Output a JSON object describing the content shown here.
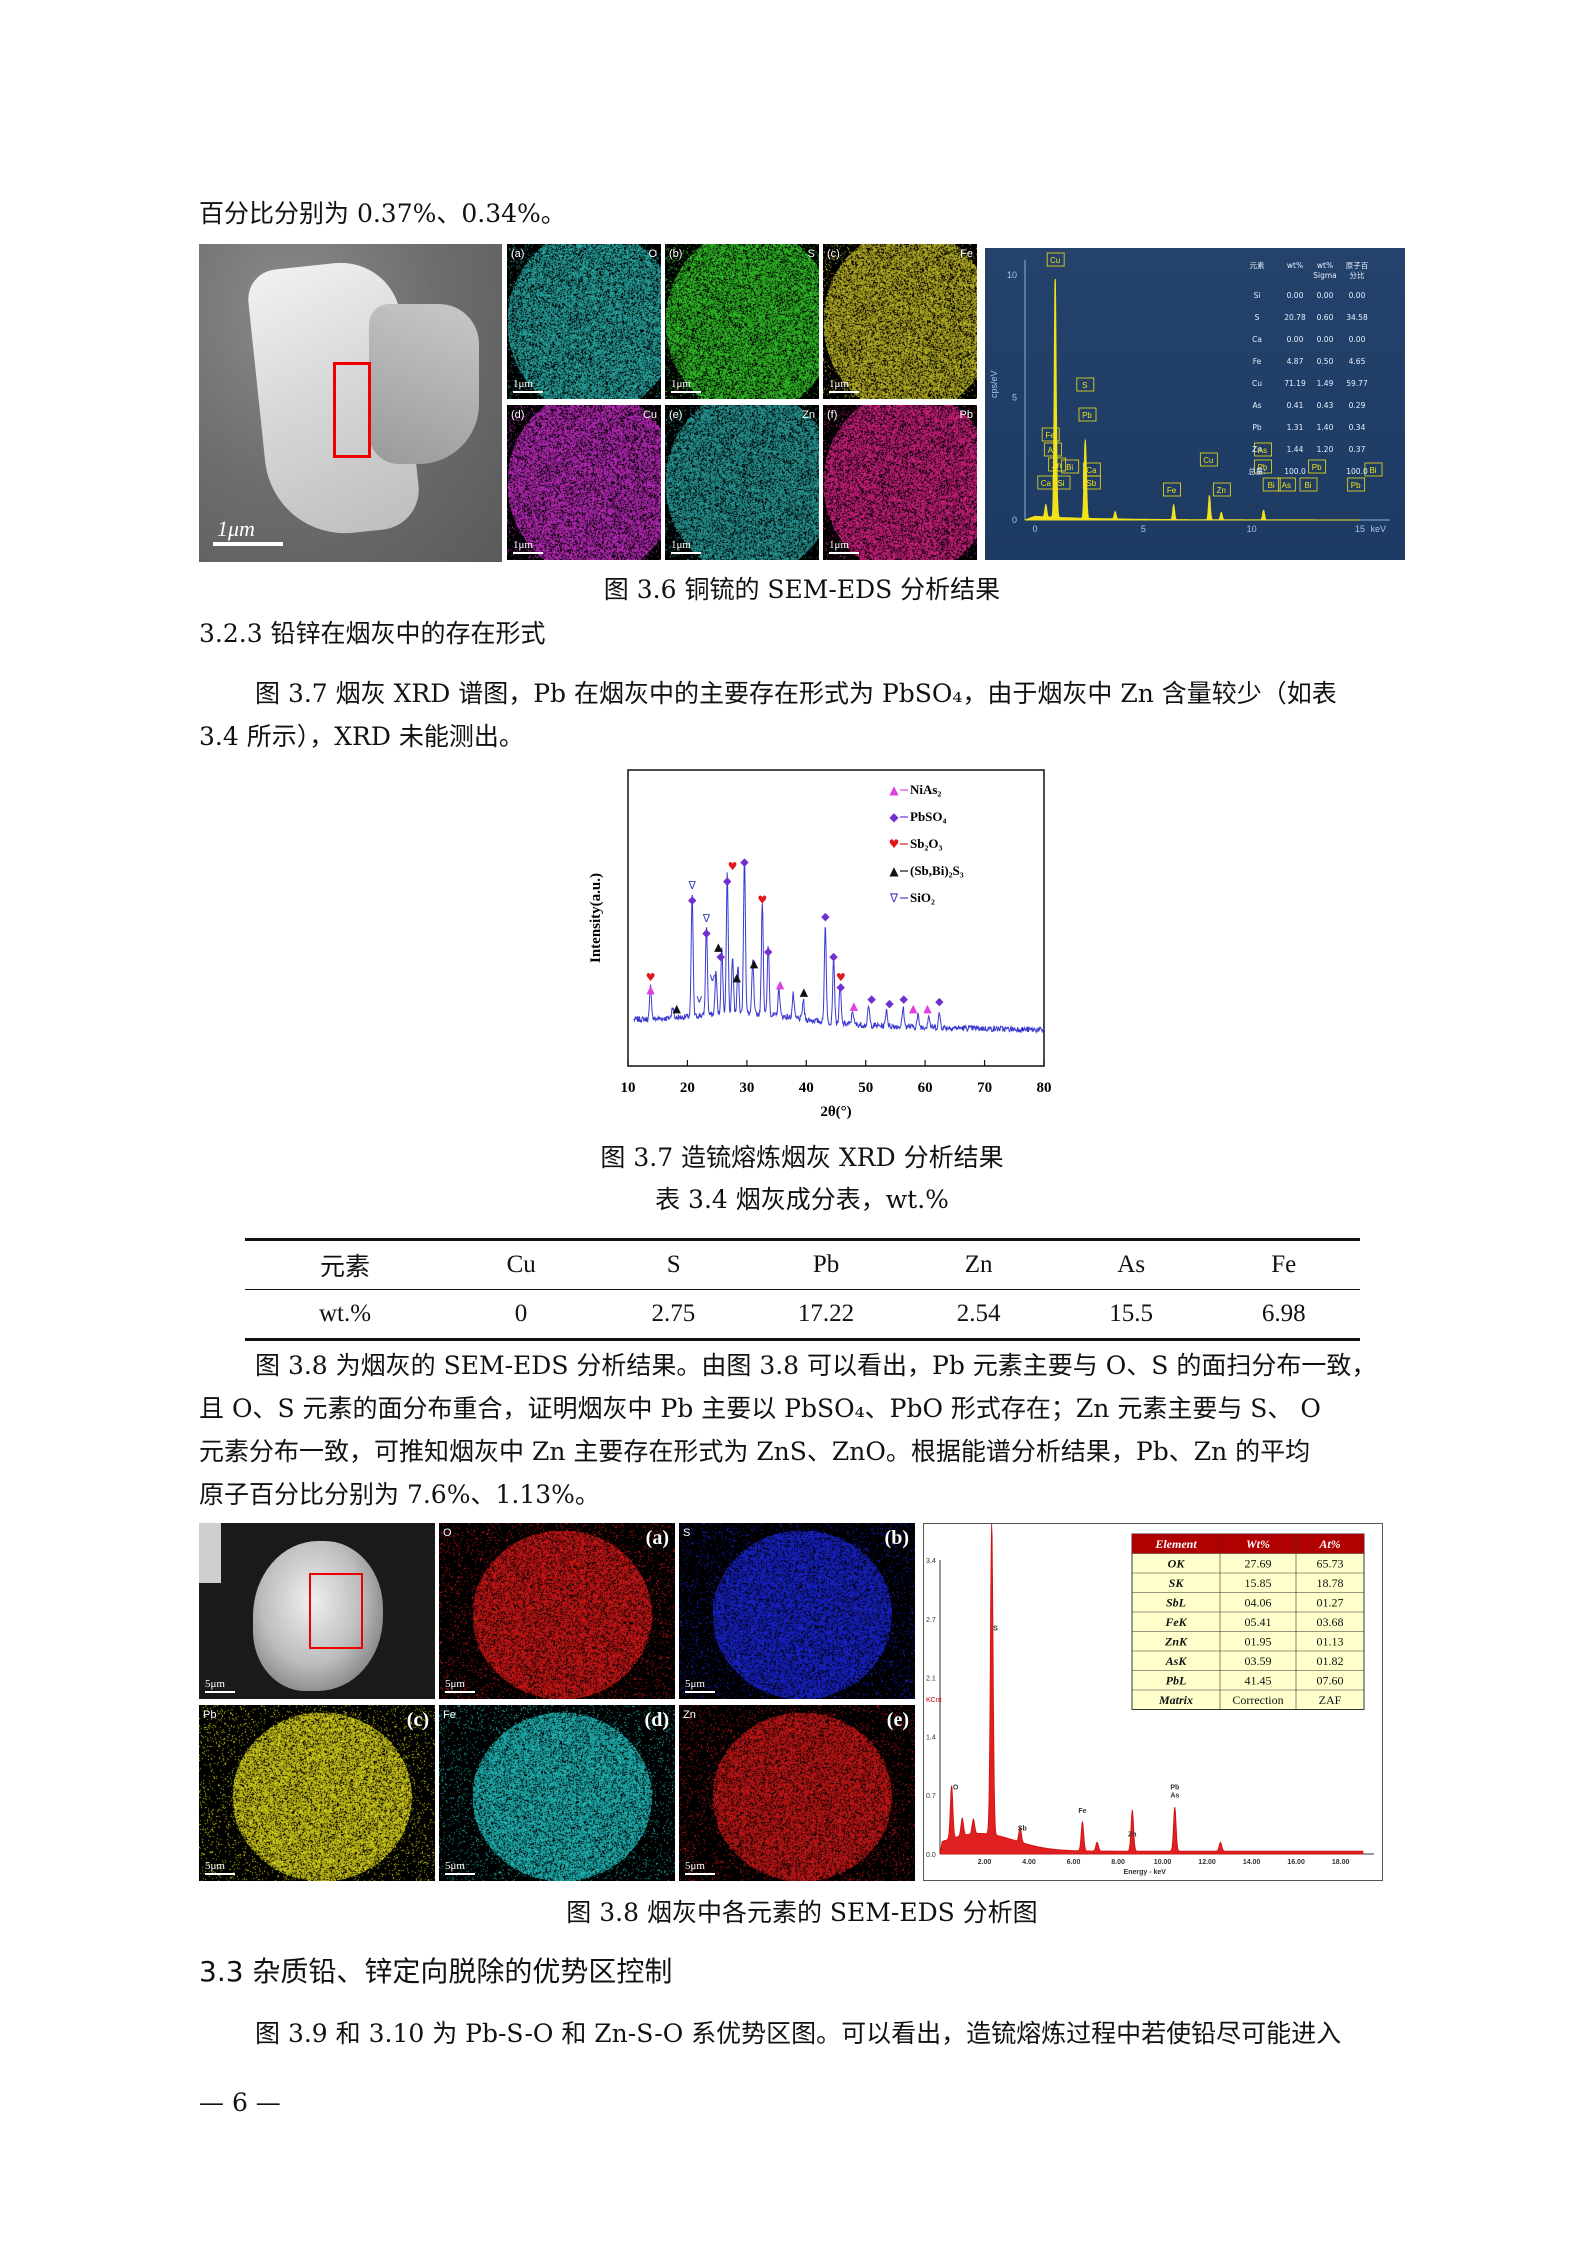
{
  "text": {
    "line_top": "百分比分别为 0.37%、0.34%。",
    "fig36_caption": "图 3.6  铜锍的 SEM-EDS 分析结果",
    "sec_323": "3.2.3  铅锌在烟灰中的存在形式",
    "para1_l1": "图 3.7 烟灰 XRD 谱图，Pb 在烟灰中的主要存在形式为 PbSO₄，由于烟灰中 Zn 含量较少（如表",
    "para1_l2": "3.4 所示），XRD 未能测出。",
    "fig37_caption": "图 3.7  造锍熔炼烟灰 XRD 分析结果",
    "tab34_caption": "表 3.4    烟灰成分表，wt.%",
    "para2_l1": "图 3.8 为烟灰的 SEM-EDS 分析结果。由图 3.8 可以看出，Pb 元素主要与 O、S 的面扫分布一致，",
    "para2_l2": "且 O、S 元素的面分布重合，证明烟灰中 Pb 主要以 PbSO₄、PbO 形式存在；Zn 元素主要与 S、 O",
    "para2_l3": "元素分布一致，可推知烟灰中 Zn 主要存在形式为 ZnS、ZnO。根据能谱分析结果，Pb、Zn 的平均",
    "para2_l4": "原子百分比分别为 7.6%、1.13%。",
    "fig38_caption": "图 3.8  烟灰中各元素的 SEM-EDS 分析图",
    "sec_33": "3.3  杂质铅、锌定向脱除的优势区控制",
    "para3_l1": "图 3.9 和 3.10 为 Pb-S-O 和 Zn-S-O 系优势区图。可以看出，造锍熔炼过程中若使铅尽可能进入",
    "page_number": "— 6 —"
  },
  "fig36": {
    "sem_scale": "1μm",
    "maps": [
      {
        "letter": "(a)",
        "element": "O",
        "color": "#2bb5b0"
      },
      {
        "letter": "(b)",
        "element": "S",
        "color": "#35d02a"
      },
      {
        "letter": "(c)",
        "element": "Fe",
        "color": "#c9c228"
      },
      {
        "letter": "(d)",
        "element": "Cu",
        "color": "#c92dc9"
      },
      {
        "letter": "(e)",
        "element": "Zn",
        "color": "#2aa8a4"
      },
      {
        "letter": "(f)",
        "element": "Pb",
        "color": "#e0228a"
      }
    ],
    "map_scale": "1μm",
    "eds": {
      "ylabel": "cps/eV",
      "yticks": [
        "10",
        "5",
        "0"
      ],
      "xticks": [
        "0",
        "5",
        "10",
        "15"
      ],
      "xunit": "keV",
      "peaks_labels": [
        "Cu",
        "S",
        "Pb",
        "Fe",
        "As",
        "Zn",
        "Bi",
        "Ca",
        "Si",
        "Sb",
        "Cu",
        "As",
        "Pb",
        "Bi",
        "Fe",
        "Zn",
        "Bi",
        "As",
        "Bi",
        "Pb"
      ],
      "table_headers": [
        "元素",
        "wt%",
        "wt%\nSigma",
        "原子百\n分比"
      ],
      "table_rows": [
        [
          "Si",
          "0.00",
          "0.00",
          "0.00"
        ],
        [
          "S",
          "20.78",
          "0.60",
          "34.58"
        ],
        [
          "Ca",
          "0.00",
          "0.00",
          "0.00"
        ],
        [
          "Fe",
          "4.87",
          "0.50",
          "4.65"
        ],
        [
          "Cu",
          "71.19",
          "1.49",
          "59.77"
        ],
        [
          "As",
          "0.41",
          "0.43",
          "0.29"
        ],
        [
          "Pb",
          "1.31",
          "1.40",
          "0.34"
        ],
        [
          "Zn",
          "1.44",
          "1.20",
          "0.37"
        ],
        [
          "总量:",
          "100.0",
          "",
          "100.0"
        ]
      ]
    }
  },
  "chart_data": {
    "type": "line",
    "xlabel": "2θ(°)",
    "ylabel": "Intensity(a.u.)",
    "xlim": [
      10,
      80
    ],
    "xticks": [
      10,
      20,
      30,
      40,
      50,
      60,
      70,
      80
    ],
    "legend": [
      {
        "symbol": "▲",
        "name": "NiAs₂",
        "color": "#e040e0"
      },
      {
        "symbol": "◆",
        "name": "PbSO₄",
        "color": "#7030d0"
      },
      {
        "symbol": "♥",
        "name": "Sb₂O₃",
        "color": "#e01818"
      },
      {
        "symbol": "▲",
        "name": "(Sb,Bi)₂S₃",
        "color": "#111111"
      },
      {
        "symbol": "∇",
        "name": "SiO₂",
        "color": "#4040c0"
      }
    ],
    "peaks": [
      {
        "x": 13.8,
        "h": 0.14
      },
      {
        "x": 17.5,
        "h": 0.05
      },
      {
        "x": 20.8,
        "h": 0.52
      },
      {
        "x": 23.2,
        "h": 0.38
      },
      {
        "x": 24.8,
        "h": 0.18
      },
      {
        "x": 25.8,
        "h": 0.28
      },
      {
        "x": 26.7,
        "h": 0.6
      },
      {
        "x": 27.6,
        "h": 0.25
      },
      {
        "x": 28.5,
        "h": 0.2
      },
      {
        "x": 29.6,
        "h": 0.68
      },
      {
        "x": 31.0,
        "h": 0.22
      },
      {
        "x": 32.6,
        "h": 0.48
      },
      {
        "x": 33.6,
        "h": 0.3
      },
      {
        "x": 35.4,
        "h": 0.12
      },
      {
        "x": 37.8,
        "h": 0.1
      },
      {
        "x": 39.5,
        "h": 0.08
      },
      {
        "x": 43.2,
        "h": 0.42
      },
      {
        "x": 44.6,
        "h": 0.28
      },
      {
        "x": 45.7,
        "h": 0.16
      },
      {
        "x": 47.8,
        "h": 0.06
      },
      {
        "x": 50.5,
        "h": 0.08
      },
      {
        "x": 53.5,
        "h": 0.07
      },
      {
        "x": 56.3,
        "h": 0.08
      },
      {
        "x": 58.8,
        "h": 0.05
      },
      {
        "x": 60.6,
        "h": 0.05
      },
      {
        "x": 62.4,
        "h": 0.06
      }
    ],
    "markers": [
      {
        "x": 13.8,
        "h": 0.14,
        "sym": "▲",
        "color": "#e040e0"
      },
      {
        "x": 13.8,
        "h": 0.19,
        "sym": "♥",
        "color": "#e01818"
      },
      {
        "x": 18.2,
        "h": 0.06,
        "sym": "▲",
        "color": "#111111"
      },
      {
        "x": 20.8,
        "h": 0.52,
        "sym": "◆",
        "color": "#7030d0"
      },
      {
        "x": 20.8,
        "h": 0.58,
        "sym": "∇",
        "color": "#4040c0"
      },
      {
        "x": 22.0,
        "h": 0.1,
        "sym": "∨",
        "color": "#4040c0"
      },
      {
        "x": 23.2,
        "h": 0.38,
        "sym": "◆",
        "color": "#7030d0"
      },
      {
        "x": 23.2,
        "h": 0.44,
        "sym": "∇",
        "color": "#4040c0"
      },
      {
        "x": 24.2,
        "h": 0.19,
        "sym": "∨",
        "color": "#4040c0"
      },
      {
        "x": 25.2,
        "h": 0.32,
        "sym": "▲",
        "color": "#111111"
      },
      {
        "x": 25.6,
        "h": 0.28,
        "sym": "◆",
        "color": "#7030d0"
      },
      {
        "x": 26.7,
        "h": 0.6,
        "sym": "◆",
        "color": "#7030d0"
      },
      {
        "x": 27.6,
        "h": 0.66,
        "sym": "♥",
        "color": "#e01818"
      },
      {
        "x": 28.3,
        "h": 0.19,
        "sym": "▲",
        "color": "#111111"
      },
      {
        "x": 29.6,
        "h": 0.68,
        "sym": "◆",
        "color": "#7030d0"
      },
      {
        "x": 31.2,
        "h": 0.25,
        "sym": "▲",
        "color": "#111111"
      },
      {
        "x": 32.6,
        "h": 0.52,
        "sym": "♥",
        "color": "#e01818"
      },
      {
        "x": 33.6,
        "h": 0.3,
        "sym": "◆",
        "color": "#7030d0"
      },
      {
        "x": 35.6,
        "h": 0.16,
        "sym": "▲",
        "color": "#e040e0"
      },
      {
        "x": 39.6,
        "h": 0.13,
        "sym": "▲",
        "color": "#111111"
      },
      {
        "x": 43.2,
        "h": 0.45,
        "sym": "◆",
        "color": "#7030d0"
      },
      {
        "x": 44.6,
        "h": 0.28,
        "sym": "◆",
        "color": "#7030d0"
      },
      {
        "x": 45.8,
        "h": 0.19,
        "sym": "♥",
        "color": "#e01818"
      },
      {
        "x": 45.8,
        "h": 0.15,
        "sym": "◆",
        "color": "#7030d0"
      },
      {
        "x": 48.0,
        "h": 0.07,
        "sym": "▲",
        "color": "#e040e0"
      },
      {
        "x": 51.0,
        "h": 0.1,
        "sym": "◆",
        "color": "#7030d0"
      },
      {
        "x": 54.0,
        "h": 0.08,
        "sym": "◆",
        "color": "#7030d0"
      },
      {
        "x": 56.4,
        "h": 0.1,
        "sym": "◆",
        "color": "#7030d0"
      },
      {
        "x": 58.0,
        "h": 0.06,
        "sym": "▲",
        "color": "#e040e0"
      },
      {
        "x": 60.4,
        "h": 0.06,
        "sym": "▲",
        "color": "#e040e0"
      },
      {
        "x": 62.4,
        "h": 0.09,
        "sym": "◆",
        "color": "#7030d0"
      }
    ]
  },
  "table34": {
    "headers": [
      "元素",
      "Cu",
      "S",
      "Pb",
      "Zn",
      "As",
      "Fe"
    ],
    "row": [
      "wt.%",
      "0",
      "2.75",
      "17.22",
      "2.54",
      "15.5",
      "6.98"
    ]
  },
  "fig38": {
    "sem_scale": "5μm",
    "maps": [
      {
        "letter": "(a)",
        "element": "O",
        "color": "#e01818"
      },
      {
        "letter": "(b)",
        "element": "S",
        "color": "#1a26e0"
      },
      {
        "letter": "(c)",
        "element": "Pb",
        "color": "#e6e01a"
      },
      {
        "letter": "(d)",
        "element": "Fe",
        "color": "#22c6c6"
      },
      {
        "letter": "(e)",
        "element": "Zn",
        "color": "#d81818"
      }
    ],
    "map_scale": "5μm",
    "eds": {
      "ylabel": "KCnt",
      "yticks": [
        "3.4",
        "2.7",
        "2.1",
        "1.4",
        "0.7",
        "0.0"
      ],
      "xticks": [
        "2.00",
        "4.00",
        "6.00",
        "8.00",
        "10.00",
        "12.00",
        "14.00",
        "16.00",
        "18.00"
      ],
      "xlabel": "Energy - keV",
      "peak_labels": [
        "O",
        "S",
        "Sb",
        "Fe",
        "Zn",
        "Pb\nAs"
      ],
      "table_headers": [
        "Element",
        "Wt%",
        "At%"
      ],
      "table_rows": [
        [
          "OK",
          "27.69",
          "65.73"
        ],
        [
          "SK",
          "15.85",
          "18.78"
        ],
        [
          "SbL",
          "04.06",
          "01.27"
        ],
        [
          "FeK",
          "05.41",
          "03.68"
        ],
        [
          "ZnK",
          "01.95",
          "01.13"
        ],
        [
          "AsK",
          "03.59",
          "01.82"
        ],
        [
          "PbL",
          "41.45",
          "07.60"
        ],
        [
          "Matrix",
          "Correction",
          "ZAF"
        ]
      ]
    }
  }
}
